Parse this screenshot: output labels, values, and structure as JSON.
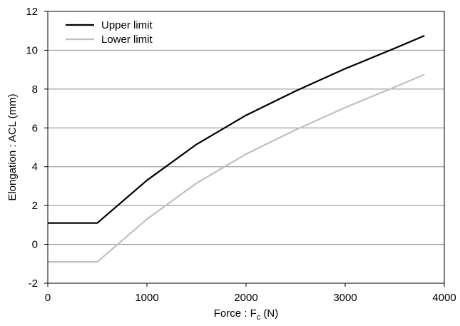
{
  "chart_data": {
    "type": "line",
    "title": "",
    "xlabel": "Force : F",
    "xlabel_sub": "c",
    "xlabel_unit": " (N)",
    "ylabel": "Elongation : ACL (mm)",
    "xlim": [
      0,
      4000
    ],
    "ylim": [
      -2,
      12
    ],
    "xticks": [
      0,
      1000,
      2000,
      3000,
      4000
    ],
    "yticks": [
      -2,
      0,
      2,
      4,
      6,
      8,
      10,
      12
    ],
    "grid": "horizontal",
    "legend_position": "top-left",
    "series": [
      {
        "name": "Upper limit",
        "color": "#000000",
        "x": [
          0,
          500,
          1000,
          1500,
          2000,
          2500,
          3000,
          3500,
          3800
        ],
        "y": [
          1.1,
          1.1,
          3.3,
          5.15,
          6.65,
          7.9,
          9.05,
          10.1,
          10.75
        ]
      },
      {
        "name": "Lower limit",
        "color": "#c0c0c0",
        "x": [
          0,
          500,
          1000,
          1500,
          2000,
          2500,
          3000,
          3500,
          3800
        ],
        "y": [
          -0.9,
          -0.9,
          1.3,
          3.15,
          4.65,
          5.9,
          7.05,
          8.1,
          8.75
        ]
      }
    ]
  }
}
